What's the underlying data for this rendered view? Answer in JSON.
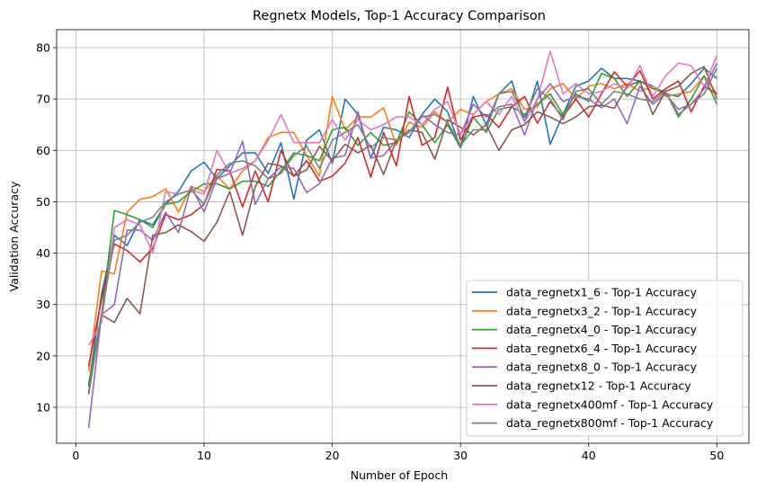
{
  "chart_data": {
    "type": "line",
    "title": "Regnetx Models, Top-1 Accuracy Comparison",
    "xlabel": "Number of Epoch",
    "ylabel": "Validation Accuracy",
    "xlim": [
      -1.5,
      52.5
    ],
    "ylim": [
      3.0,
      83.5
    ],
    "xticks": [
      0,
      10,
      20,
      30,
      40,
      50
    ],
    "yticks": [
      10,
      20,
      30,
      40,
      50,
      60,
      70,
      80
    ],
    "grid": true,
    "legend_position": "lower-right",
    "x": [
      1,
      2,
      3,
      4,
      5,
      6,
      7,
      8,
      9,
      10,
      11,
      12,
      13,
      14,
      15,
      16,
      17,
      18,
      19,
      20,
      21,
      22,
      23,
      24,
      25,
      26,
      27,
      28,
      29,
      30,
      31,
      32,
      33,
      34,
      35,
      36,
      37,
      38,
      39,
      40,
      41,
      42,
      43,
      44,
      45,
      46,
      47,
      48,
      49,
      50
    ],
    "series": [
      {
        "name": "data_regnetx1_6 - Top-1 Accuracy",
        "color": "#1f77b4",
        "values": [
          14,
          32,
          43.5,
          41.5,
          46.5,
          45.5,
          49.5,
          52,
          56,
          57.7,
          54.5,
          57,
          59.5,
          59.5,
          55.5,
          61.5,
          50.5,
          62,
          64,
          57.5,
          70,
          67,
          58.5,
          64.5,
          64,
          62.5,
          67,
          70,
          67.5,
          60.5,
          70.5,
          65,
          71,
          73.5,
          65.5,
          73.5,
          61.2,
          67,
          72.5,
          73.5,
          76,
          74,
          74,
          73.5,
          72.5,
          71,
          70.5,
          73,
          76,
          74
        ]
      },
      {
        "name": "data_regnetx3_2 - Top-1 Accuracy",
        "color": "#ff7f0e",
        "values": [
          17,
          36.5,
          36,
          48,
          50.5,
          51,
          52.5,
          48,
          53,
          52,
          55,
          52.5,
          56,
          58,
          62.5,
          63.5,
          63.5,
          59,
          55,
          70.5,
          64,
          66.5,
          66.5,
          68.3,
          61,
          65.5,
          64.5,
          67.5,
          65.5,
          68,
          67,
          69.5,
          71,
          72,
          68,
          68.5,
          72,
          73,
          70,
          72.5,
          73,
          72,
          73,
          71.5,
          72.5,
          70.5,
          71,
          71.5,
          74.5,
          71
        ]
      },
      {
        "name": "data_regnetx4_0 - Top-1 Accuracy",
        "color": "#2ca02c",
        "values": [
          14.5,
          28,
          48.3,
          47.5,
          46.5,
          45,
          49.5,
          50,
          52,
          53.5,
          53.5,
          52.5,
          54,
          54,
          53,
          56,
          59.5,
          59,
          58,
          64,
          64.5,
          61,
          63.5,
          61,
          61.5,
          67.5,
          65,
          61.5,
          65,
          60.5,
          66.5,
          63.5,
          68,
          68.5,
          67,
          69,
          71,
          67,
          71,
          69.5,
          75,
          74,
          70.5,
          73.5,
          72,
          71.5,
          66.5,
          70,
          74.5,
          69
        ]
      },
      {
        "name": "data_regnetx6_4 - Top-1 Accuracy",
        "color": "#d62728",
        "values": [
          18,
          31,
          41.8,
          40.5,
          38.3,
          41,
          47.5,
          46.5,
          47.5,
          49.5,
          56.3,
          56,
          49,
          56,
          50,
          60,
          55,
          58,
          54,
          55,
          57.5,
          62.5,
          54.8,
          63.5,
          57,
          70.5,
          61,
          62.5,
          72.3,
          62,
          66.5,
          67,
          64.5,
          68.5,
          70.5,
          65.3,
          69.5,
          66.5,
          70,
          66.5,
          71,
          75.3,
          72.5,
          75.5,
          70,
          72,
          73.5,
          67.5,
          72.5,
          71
        ]
      },
      {
        "name": "data_regnetx8_0 - Top-1 Accuracy",
        "color": "#9467bd",
        "values": [
          6,
          28,
          30,
          44.5,
          44.5,
          42.5,
          48,
          44,
          53,
          48,
          54.5,
          55.5,
          61.8,
          49.5,
          54.5,
          56.8,
          56.5,
          51.8,
          53.5,
          58.5,
          59,
          67.5,
          58.5,
          59,
          62,
          63.5,
          67,
          65,
          63.5,
          63,
          69,
          66.5,
          68.5,
          69,
          63,
          70,
          73,
          69.5,
          70.5,
          70,
          68.3,
          70,
          65.2,
          72.5,
          69,
          71,
          68,
          69,
          72,
          77
        ]
      },
      {
        "name": "data_regnetx12 - Top-1 Accuracy",
        "color": "#8c564b",
        "values": [
          12.5,
          28,
          26.5,
          31.2,
          28.2,
          43.5,
          44,
          45.5,
          44.2,
          42.3,
          46,
          52,
          43.5,
          53,
          57.5,
          57,
          55,
          56.2,
          60.8,
          58,
          61.2,
          59.5,
          61,
          55.3,
          62,
          64,
          63.5,
          58.3,
          66,
          64.5,
          63,
          65,
          60,
          64,
          65,
          67.5,
          66.5,
          65.2,
          66.5,
          68.5,
          68.8,
          68.2,
          72.5,
          73.5,
          67,
          71.5,
          72.5,
          75,
          76.3,
          70
        ]
      },
      {
        "name": "data_regnetx400mf - Top-1 Accuracy",
        "color": "#e377c2",
        "values": [
          22,
          26.5,
          45,
          46.5,
          45.5,
          40,
          52,
          51.5,
          52.3,
          51.5,
          60,
          55.5,
          56.5,
          58,
          62,
          67,
          61.5,
          61.5,
          61.5,
          66,
          62,
          66,
          64,
          65,
          66.5,
          66.5,
          65,
          68,
          69.5,
          63,
          67,
          69.5,
          67,
          70.5,
          65.5,
          70,
          79.3,
          71,
          73,
          71,
          71.5,
          73,
          72,
          76.5,
          70.5,
          74.5,
          77,
          76.5,
          72.5,
          78.5
        ]
      },
      {
        "name": "data_regnetx800mf - Top-1 Accuracy",
        "color": "#7f7f7f",
        "values": [
          13,
          28,
          42.5,
          43.5,
          46,
          47,
          50,
          51.5,
          52.3,
          49.5,
          55.2,
          57.5,
          58,
          57,
          54.5,
          55.5,
          59,
          60.8,
          56.5,
          62,
          63.5,
          65,
          60.5,
          62.5,
          62,
          63.5,
          66.5,
          67,
          65.5,
          61,
          64,
          64,
          71,
          71.5,
          66.5,
          72,
          70,
          66,
          71.5,
          72,
          69,
          71.5,
          71,
          70,
          69.5,
          71.5,
          67,
          69,
          71,
          76
        ]
      }
    ]
  }
}
